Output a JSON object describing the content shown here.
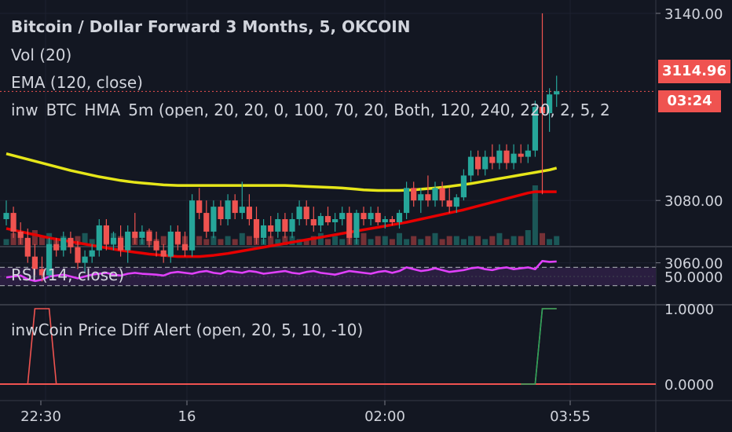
{
  "legend": {
    "title": "Bitcoin / Dollar Forward 3 Months, 5, OKCOIN",
    "vol": "Vol (20)",
    "ema": "EMA (120, close)",
    "hma": "inw_BTC_HMA_5m (open, 20, 20, 0, 100, 70, 20, Both, 120, 240, 220, 2, 5, 2"
  },
  "rsi_label": "RSI (14, close)",
  "alert_label": "inwCoin Price Diff Alert (open, 20, 5, 10, -10)",
  "price_tag": "3114.96",
  "timer_tag": "03:24",
  "colors": {
    "background": "#131722",
    "up": "#26a69a",
    "down": "#ef5350",
    "ema": "#e60000",
    "hma": "#e6e619",
    "rsi": "#e040fb",
    "rsi_band": "#2a1e40",
    "alert_red": "#ef5350",
    "alert_green": "#26a65b"
  },
  "chart_data": [
    {
      "type": "candlestick",
      "title": "Bitcoin / Dollar Forward 3 Months, 5, OKCOIN",
      "y_ticks": [
        3140,
        3080,
        3060
      ],
      "y_tick_labels": [
        "3140.00",
        "3080.00",
        "3060.00"
      ],
      "ylim": [
        3045,
        3145
      ],
      "x_tick_labels": [
        "22:30",
        "16",
        "02:00",
        "03:55"
      ],
      "last_price": 3114.96,
      "ohlc": [
        [
          3074,
          3080,
          3072,
          3076
        ],
        [
          3076,
          3078,
          3068,
          3070
        ],
        [
          3070,
          3073,
          3066,
          3068
        ],
        [
          3068,
          3071,
          3060,
          3062
        ],
        [
          3062,
          3066,
          3056,
          3058
        ],
        [
          3058,
          3062,
          3054,
          3056
        ],
        [
          3056,
          3068,
          3055,
          3066
        ],
        [
          3066,
          3068,
          3062,
          3064
        ],
        [
          3064,
          3070,
          3062,
          3068
        ],
        [
          3068,
          3070,
          3063,
          3065
        ],
        [
          3065,
          3067,
          3058,
          3060
        ],
        [
          3060,
          3064,
          3057,
          3062
        ],
        [
          3062,
          3066,
          3060,
          3064
        ],
        [
          3064,
          3074,
          3062,
          3072
        ],
        [
          3072,
          3074,
          3064,
          3066
        ],
        [
          3066,
          3070,
          3064,
          3068
        ],
        [
          3068,
          3072,
          3062,
          3064
        ],
        [
          3064,
          3072,
          3060,
          3070
        ],
        [
          3070,
          3076,
          3066,
          3068
        ],
        [
          3068,
          3072,
          3066,
          3070
        ],
        [
          3070,
          3071,
          3065,
          3067
        ],
        [
          3067,
          3070,
          3062,
          3064
        ],
        [
          3064,
          3066,
          3060,
          3062
        ],
        [
          3062,
          3072,
          3060,
          3070
        ],
        [
          3070,
          3072,
          3064,
          3066
        ],
        [
          3066,
          3070,
          3062,
          3064
        ],
        [
          3064,
          3082,
          3062,
          3080
        ],
        [
          3080,
          3084,
          3074,
          3076
        ],
        [
          3076,
          3080,
          3068,
          3070
        ],
        [
          3070,
          3080,
          3068,
          3078
        ],
        [
          3078,
          3080,
          3072,
          3074
        ],
        [
          3074,
          3082,
          3072,
          3080
        ],
        [
          3080,
          3082,
          3074,
          3076
        ],
        [
          3076,
          3086,
          3074,
          3078
        ],
        [
          3078,
          3082,
          3072,
          3074
        ],
        [
          3074,
          3078,
          3066,
          3068
        ],
        [
          3068,
          3074,
          3066,
          3072
        ],
        [
          3072,
          3075,
          3068,
          3070
        ],
        [
          3070,
          3076,
          3068,
          3074
        ],
        [
          3074,
          3076,
          3068,
          3070
        ],
        [
          3070,
          3076,
          3068,
          3074
        ],
        [
          3074,
          3080,
          3072,
          3078
        ],
        [
          3078,
          3080,
          3072,
          3074
        ],
        [
          3074,
          3078,
          3070,
          3072
        ],
        [
          3072,
          3076,
          3070,
          3075
        ],
        [
          3075,
          3078,
          3072,
          3073
        ],
        [
          3073,
          3076,
          3070,
          3074
        ],
        [
          3074,
          3078,
          3072,
          3076
        ],
        [
          3076,
          3078,
          3066,
          3068
        ],
        [
          3068,
          3077,
          3066,
          3076
        ],
        [
          3076,
          3078,
          3072,
          3074
        ],
        [
          3074,
          3078,
          3072,
          3076
        ],
        [
          3076,
          3078,
          3072,
          3073
        ],
        [
          3073,
          3075,
          3071,
          3074
        ],
        [
          3074,
          3075,
          3072,
          3073
        ],
        [
          3073,
          3077,
          3071,
          3076
        ],
        [
          3076,
          3086,
          3074,
          3084
        ],
        [
          3084,
          3086,
          3078,
          3080
        ],
        [
          3080,
          3084,
          3076,
          3082
        ],
        [
          3082,
          3088,
          3078,
          3080
        ],
        [
          3080,
          3086,
          3078,
          3084
        ],
        [
          3084,
          3086,
          3078,
          3080
        ],
        [
          3080,
          3084,
          3076,
          3078
        ],
        [
          3078,
          3082,
          3076,
          3081
        ],
        [
          3081,
          3090,
          3080,
          3088
        ],
        [
          3088,
          3096,
          3086,
          3094
        ],
        [
          3094,
          3096,
          3088,
          3090
        ],
        [
          3090,
          3096,
          3088,
          3094
        ],
        [
          3094,
          3098,
          3090,
          3092
        ],
        [
          3092,
          3098,
          3090,
          3096
        ],
        [
          3096,
          3098,
          3090,
          3092
        ],
        [
          3092,
          3098,
          3090,
          3095
        ],
        [
          3095,
          3098,
          3092,
          3094
        ],
        [
          3094,
          3098,
          3092,
          3096
        ],
        [
          3096,
          3112,
          3094,
          3110
        ],
        [
          3110,
          3140,
          3082,
          3108
        ],
        [
          3108,
          3116,
          3102,
          3114
        ],
        [
          3114,
          3120,
          3110,
          3115
        ]
      ],
      "volume": [
        2,
        4,
        3,
        2,
        5,
        3,
        4,
        2,
        3,
        2,
        3,
        4,
        2,
        3,
        2,
        4,
        3,
        2,
        3,
        2,
        5,
        2,
        3,
        2,
        4,
        3,
        6,
        3,
        2,
        3,
        2,
        3,
        2,
        4,
        3,
        3,
        2,
        3,
        2,
        3,
        3,
        2,
        2,
        3,
        4,
        2,
        3,
        2,
        3,
        2,
        4,
        2,
        3,
        3,
        2,
        4,
        2,
        3,
        2,
        3,
        4,
        2,
        3,
        3,
        2,
        3,
        3,
        2,
        3,
        4,
        2,
        3,
        3,
        5,
        20,
        4,
        2,
        3
      ],
      "series": [
        {
          "name": "EMA (120, close)",
          "values": [
            3071,
            3070.5,
            3070,
            3069.5,
            3069,
            3068.5,
            3068,
            3067.6,
            3067.2,
            3066.8,
            3066.4,
            3066,
            3065.6,
            3065.2,
            3064.8,
            3064.4,
            3064,
            3063.7,
            3063.4,
            3063.1,
            3062.8,
            3062.6,
            3062.4,
            3062.2,
            3062,
            3062,
            3062,
            3062,
            3062.2,
            3062.4,
            3062.7,
            3063,
            3063.4,
            3063.8,
            3064.2,
            3064.6,
            3065,
            3065.4,
            3065.8,
            3066.2,
            3066.6,
            3067,
            3067.4,
            3067.8,
            3068.2,
            3068.6,
            3069,
            3069.4,
            3069.8,
            3070.2,
            3070.6,
            3071,
            3071.4,
            3071.8,
            3072.2,
            3072.6,
            3073,
            3073.5,
            3074,
            3074.5,
            3075,
            3075.5,
            3076,
            3076.5,
            3077,
            3077.6,
            3078.2,
            3078.8,
            3079.4,
            3080,
            3080.6,
            3081.2,
            3081.8,
            3082.4,
            3082.8,
            3082.8,
            3082.8,
            3082.8
          ]
        },
        {
          "name": "HMA",
          "values": [
            3095,
            3094.4,
            3093.8,
            3093.2,
            3092.6,
            3092,
            3091.4,
            3090.8,
            3090.2,
            3089.6,
            3089.1,
            3088.6,
            3088.1,
            3087.6,
            3087.2,
            3086.8,
            3086.4,
            3086.1,
            3085.8,
            3085.6,
            3085.4,
            3085.2,
            3085,
            3084.9,
            3084.8,
            3084.8,
            3084.8,
            3084.8,
            3084.8,
            3084.8,
            3084.8,
            3084.8,
            3084.8,
            3084.8,
            3084.8,
            3084.8,
            3084.8,
            3084.8,
            3084.8,
            3084.8,
            3084.7,
            3084.6,
            3084.5,
            3084.4,
            3084.3,
            3084.2,
            3084.1,
            3084,
            3083.8,
            3083.6,
            3083.4,
            3083.3,
            3083.2,
            3083.2,
            3083.2,
            3083.2,
            3083.3,
            3083.4,
            3083.6,
            3083.8,
            3084,
            3084.2,
            3084.5,
            3084.8,
            3085.1,
            3085.4,
            3085.8,
            3086.2,
            3086.6,
            3087,
            3087.4,
            3087.8,
            3088.2,
            3088.6,
            3089,
            3089.4,
            3089.8,
            3090.4
          ]
        }
      ]
    },
    {
      "type": "line",
      "title": "RSI (14, close)",
      "y_tick_labels": [
        "50.0000"
      ],
      "ylim": [
        0,
        100
      ],
      "series": [
        {
          "name": "RSI (14, close)",
          "values": [
            48,
            50,
            52,
            44,
            40,
            43,
            50,
            52,
            54,
            50,
            46,
            50,
            54,
            56,
            58,
            54,
            52,
            56,
            58,
            56,
            55,
            54,
            52,
            58,
            60,
            58,
            56,
            60,
            62,
            58,
            56,
            62,
            60,
            58,
            62,
            60,
            56,
            58,
            60,
            62,
            58,
            56,
            60,
            62,
            58,
            56,
            54,
            58,
            62,
            60,
            58,
            56,
            60,
            62,
            58,
            62,
            70,
            66,
            62,
            64,
            68,
            64,
            60,
            62,
            64,
            68,
            70,
            66,
            64,
            68,
            70,
            66,
            68,
            70,
            66,
            84,
            82,
            83
          ]
        }
      ]
    },
    {
      "type": "line",
      "title": "inwCoin Price Diff Alert (open, 20, 5, 10, -10)",
      "y_tick_labels": [
        "1.0000",
        "0.0000"
      ],
      "ylim": [
        0,
        1
      ],
      "series": [
        {
          "name": "inwCoin Price Diff Alert (open, 20, 5, 10, -10)",
          "values": [
            0,
            0,
            0,
            0,
            1,
            1,
            1,
            0,
            0,
            0,
            0,
            0,
            0,
            0,
            0,
            0,
            0,
            0,
            0,
            0,
            0,
            0,
            0,
            0,
            0,
            0,
            0,
            0,
            0,
            0,
            0,
            0,
            0,
            0,
            0,
            0,
            0,
            0,
            0,
            0,
            0,
            0,
            0,
            0,
            0,
            0,
            0,
            0,
            0,
            0,
            0,
            0,
            0,
            0,
            0,
            0,
            0,
            0,
            0,
            0,
            0,
            0,
            0,
            0,
            0,
            0,
            0,
            0,
            0,
            0,
            0,
            0,
            0,
            0,
            0,
            1,
            1,
            1
          ]
        }
      ]
    }
  ]
}
